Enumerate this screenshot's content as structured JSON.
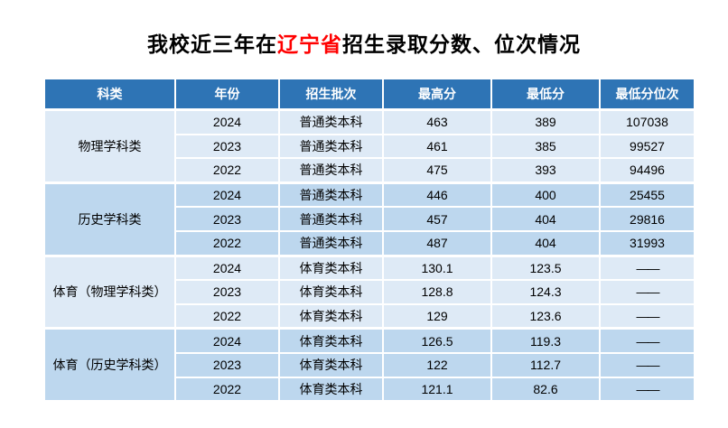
{
  "title": {
    "prefix": "我校近三年在",
    "highlight": "辽宁省",
    "suffix": "招生录取分数、位次情况",
    "highlight_color": "#FF0000"
  },
  "colors": {
    "header_bg": "#2E74B5",
    "header_text": "#FFFFFF",
    "group_light_bg": "#DEEAF6",
    "group_dark_bg": "#BDD7EE"
  },
  "table": {
    "headers": [
      "科类",
      "年份",
      "招生批次",
      "最高分",
      "最低分",
      "最低分位次"
    ],
    "groups": [
      {
        "category": "物理学科类",
        "rows": [
          {
            "year": "2024",
            "batch": "普通类本科",
            "max": "463",
            "min": "389",
            "rank": "107038"
          },
          {
            "year": "2023",
            "batch": "普通类本科",
            "max": "461",
            "min": "385",
            "rank": "99527"
          },
          {
            "year": "2022",
            "batch": "普通类本科",
            "max": "475",
            "min": "393",
            "rank": "94496"
          }
        ]
      },
      {
        "category": "历史学科类",
        "rows": [
          {
            "year": "2024",
            "batch": "普通类本科",
            "max": "446",
            "min": "400",
            "rank": "25455"
          },
          {
            "year": "2023",
            "batch": "普通类本科",
            "max": "457",
            "min": "404",
            "rank": "29816"
          },
          {
            "year": "2022",
            "batch": "普通类本科",
            "max": "487",
            "min": "404",
            "rank": "31993"
          }
        ]
      },
      {
        "category": "体育（物理学科类）",
        "rows": [
          {
            "year": "2024",
            "batch": "体育类本科",
            "max": "130.1",
            "min": "123.5",
            "rank": "——"
          },
          {
            "year": "2023",
            "batch": "体育类本科",
            "max": "128.8",
            "min": "124.3",
            "rank": "——"
          },
          {
            "year": "2022",
            "batch": "体育类本科",
            "max": "129",
            "min": "123.6",
            "rank": "——"
          }
        ]
      },
      {
        "category": "体育（历史学科类）",
        "rows": [
          {
            "year": "2024",
            "batch": "体育类本科",
            "max": "126.5",
            "min": "119.3",
            "rank": "——"
          },
          {
            "year": "2023",
            "batch": "体育类本科",
            "max": "122",
            "min": "112.7",
            "rank": "——"
          },
          {
            "year": "2022",
            "batch": "体育类本科",
            "max": "121.1",
            "min": "82.6",
            "rank": "——"
          }
        ]
      }
    ]
  }
}
